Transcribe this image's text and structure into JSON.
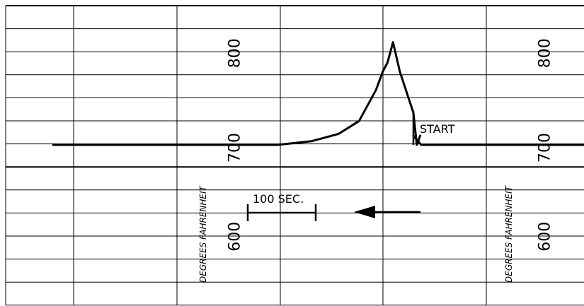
{
  "chart_data": {
    "type": "line",
    "title": "",
    "ylabel": "DEGREES FAHRENHEIT",
    "yticks": [
      "800",
      "700",
      "600"
    ],
    "ylim": [
      560,
      860
    ],
    "series": [
      {
        "values": [
          {
            "t": -530,
            "y": 700
          },
          {
            "t": -250,
            "y": 700
          },
          {
            "t": -200,
            "y": 700
          },
          {
            "t": -150,
            "y": 704
          },
          {
            "t": -110,
            "y": 712
          },
          {
            "t": -80,
            "y": 726
          },
          {
            "t": -55,
            "y": 760
          },
          {
            "t": -45,
            "y": 780
          },
          {
            "t": -38,
            "y": 790
          },
          {
            "t": -30,
            "y": 812
          },
          {
            "t": -20,
            "y": 780
          },
          {
            "t": 0,
            "y": 735
          },
          {
            "t": 5,
            "y": 700
          },
          {
            "t": 10,
            "y": 710
          }
        ]
      }
    ],
    "annotations": {
      "start_label": "START",
      "scale_label": "100 SEC."
    }
  }
}
